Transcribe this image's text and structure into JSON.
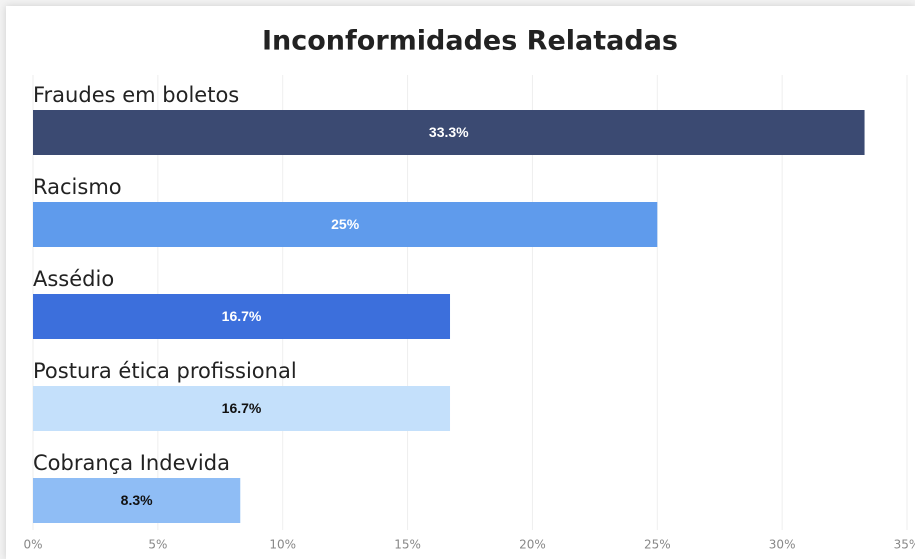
{
  "chart_data": {
    "type": "hbar",
    "title": "Inconformidades Relatadas",
    "categories": [
      "Fraudes em boletos",
      "Racismo",
      "Assédio",
      "Postura ética profissional",
      "Cobrança Indevida"
    ],
    "values": [
      33.3,
      25,
      16.7,
      16.7,
      8.3
    ],
    "value_labels": [
      "33.3%",
      "25%",
      "16.7%",
      "16.7%",
      "8.3%"
    ],
    "colors": [
      "#3b4a72",
      "#5f9bec",
      "#3c6fdc",
      "#c4e0fb",
      "#8fbdf5"
    ],
    "xlim": [
      0,
      35
    ],
    "xticks": [
      {
        "value": 0,
        "label": "0%"
      },
      {
        "value": 5,
        "label": "5%"
      },
      {
        "value": 10,
        "label": "10%"
      },
      {
        "value": 15,
        "label": "15%"
      },
      {
        "value": 20,
        "label": "20%"
      },
      {
        "value": 25,
        "label": "25%"
      },
      {
        "value": 30,
        "label": "30%"
      },
      {
        "value": 35,
        "label": "35%"
      }
    ],
    "grid": true
  }
}
